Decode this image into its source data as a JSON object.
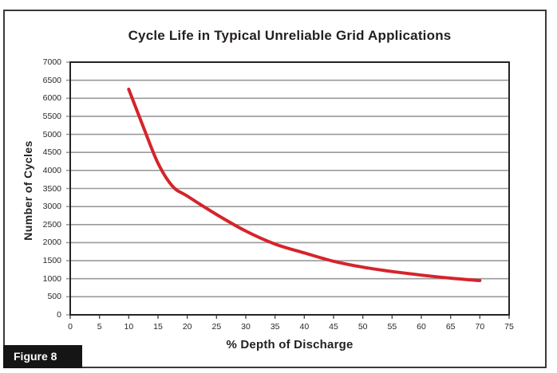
{
  "figure_label": "Figure 8",
  "chart_data": {
    "type": "line",
    "title": "Cycle Life in Typical Unreliable Grid Applications",
    "xlabel": "% Depth of Discharge",
    "ylabel": "Number of Cycles",
    "xlim": [
      0,
      75
    ],
    "ylim": [
      0,
      7000
    ],
    "x_ticks": [
      0,
      5,
      10,
      15,
      20,
      25,
      30,
      35,
      40,
      45,
      50,
      55,
      60,
      65,
      70,
      75
    ],
    "y_ticks": [
      0,
      500,
      1000,
      1500,
      2000,
      2500,
      3000,
      3500,
      4000,
      4500,
      5000,
      5500,
      6000,
      6500,
      7000
    ],
    "grid": "horizontal-only",
    "legend": "none",
    "series": [
      {
        "name": "cycle-life",
        "color": "#d5242b",
        "x": [
          10,
          12.5,
          15,
          17.5,
          20,
          25,
          30,
          35,
          40,
          45,
          50,
          55,
          60,
          65,
          70
        ],
        "y": [
          6250,
          5200,
          4200,
          3560,
          3290,
          2780,
          2320,
          1960,
          1715,
          1485,
          1320,
          1200,
          1100,
          1015,
          950
        ]
      }
    ]
  },
  "colors": {
    "curve": "#d5242b",
    "gridline": "#9a9a9a",
    "tick": "#4a4a4a",
    "plot_border": "#242424",
    "frame_border": "#3a3a3a",
    "figure_label_bg": "#151515",
    "figure_label_text": "#ffffff",
    "text": "#231f20"
  }
}
